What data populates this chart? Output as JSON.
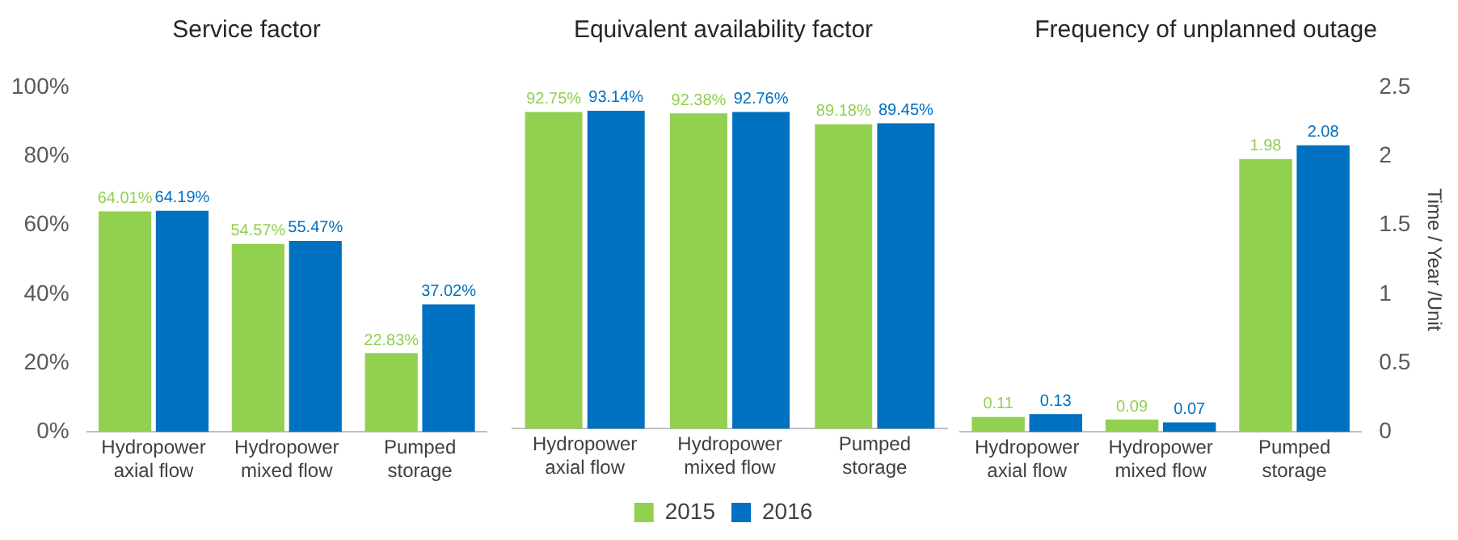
{
  "chart_data": [
    {
      "type": "bar",
      "title": "Service factor",
      "categories": [
        "Hydropower axial flow",
        "Hydropower mixed flow",
        "Pumped storage"
      ],
      "series": [
        {
          "color": "#92d050",
          "values": [
            64.01,
            54.57,
            22.83
          ],
          "value_labels": [
            "64.01%",
            "54.57%",
            "22.83%"
          ]
        },
        {
          "color": "#0070c0",
          "values": [
            64.19,
            55.47,
            37.02
          ],
          "value_labels": [
            "64.19%",
            "55.47%",
            "37.02%"
          ]
        }
      ],
      "ylim": [
        0,
        100
      ],
      "yticks": [
        {
          "value": 0,
          "label": "0%"
        },
        {
          "value": 20,
          "label": "20%"
        },
        {
          "value": 40,
          "label": "40%"
        },
        {
          "value": 60,
          "label": "60%"
        },
        {
          "value": 80,
          "label": "80%"
        },
        {
          "value": 100,
          "label": "100%"
        }
      ]
    },
    {
      "type": "bar",
      "title": "Equivalent availability factor",
      "categories": [
        "Hydropower axial flow",
        "Hydropower mixed flow",
        "Pumped storage"
      ],
      "series": [
        {
          "name": "2015",
          "color": "#92d050",
          "values": [
            92.75,
            92.38,
            89.18
          ],
          "value_labels": [
            "92.75%",
            "92.38%",
            "89.18%"
          ]
        },
        {
          "name": "2016",
          "color": "#0070c0",
          "values": [
            93.14,
            92.76,
            89.45
          ],
          "value_labels": [
            "93.14%",
            "92.76%",
            "89.45%"
          ]
        }
      ],
      "ylim": [
        0,
        100
      ],
      "tick_labels": "x",
      "legend": "bottom"
    },
    {
      "type": "bar",
      "title": "Frequency of unplanned outage",
      "categories": [
        "Hydropower axial flow",
        "Hydropower mixed flow",
        "Pumped storage"
      ],
      "series": [
        {
          "color": "#92d050",
          "values": [
            0.11,
            0.09,
            1.98
          ],
          "axis": "y2"
        },
        {
          "color": "#0070c0",
          "values": [
            0.13,
            0.07,
            2.08
          ],
          "axis": "y2"
        }
      ],
      "y2lim": [
        0,
        2.5
      ],
      "y2ticks": [
        0,
        0.5,
        1,
        1.5,
        2,
        2.5
      ],
      "y2label": "Time / Year /Unit",
      "data_labels": true
    }
  ]
}
